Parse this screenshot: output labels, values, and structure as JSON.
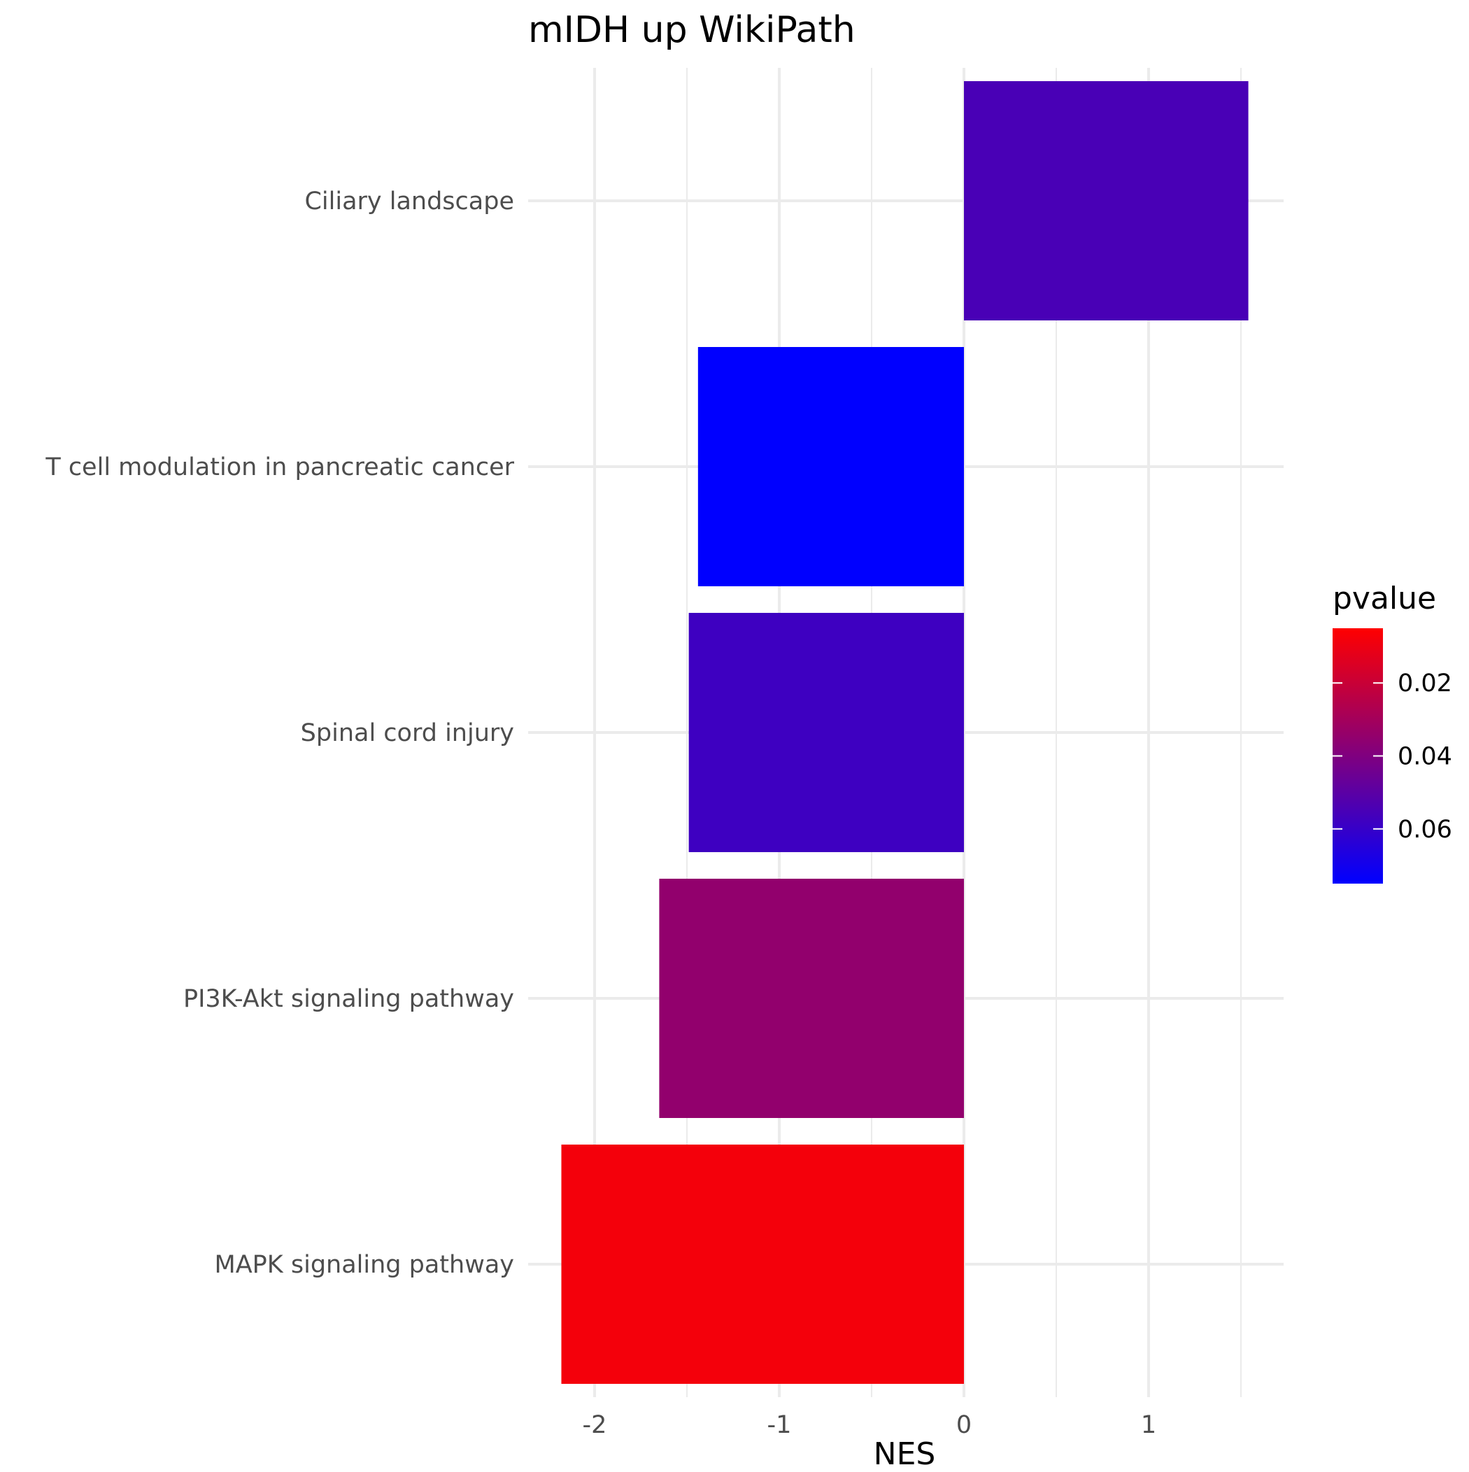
{
  "chart_data": {
    "type": "bar",
    "orientation": "horizontal",
    "title": "mIDH up WikiPath",
    "xlabel": "NES",
    "ylabel": "",
    "categories": [
      "MAPK signaling pathway",
      "PI3K-Akt signaling pathway",
      "Spinal cord injury",
      "T cell modulation in pancreatic cancer",
      "Ciliary landscape"
    ],
    "values": [
      -2.18,
      -1.65,
      -1.49,
      -1.44,
      1.54
    ],
    "pvalue": [
      0.008,
      0.035,
      0.058,
      0.075,
      0.055
    ],
    "xlim": [
      -2.3,
      1.7
    ],
    "xticks": [
      "-2",
      "-1",
      "0",
      "1"
    ],
    "xtick_values": [
      -2,
      -1,
      0,
      1
    ],
    "grid": true,
    "legend": {
      "title": "pvalue",
      "position": "right",
      "ticks": [
        "0.02",
        "0.04",
        "0.06"
      ],
      "tick_values": [
        0.02,
        0.04,
        0.06
      ],
      "range": [
        0.005,
        0.075
      ],
      "low_color": "#ff0000",
      "high_color": "#0000ff"
    },
    "colors": {
      "grid": "#ebebeb",
      "axis_text": "#4d4d4d",
      "title": "#000000"
    }
  }
}
